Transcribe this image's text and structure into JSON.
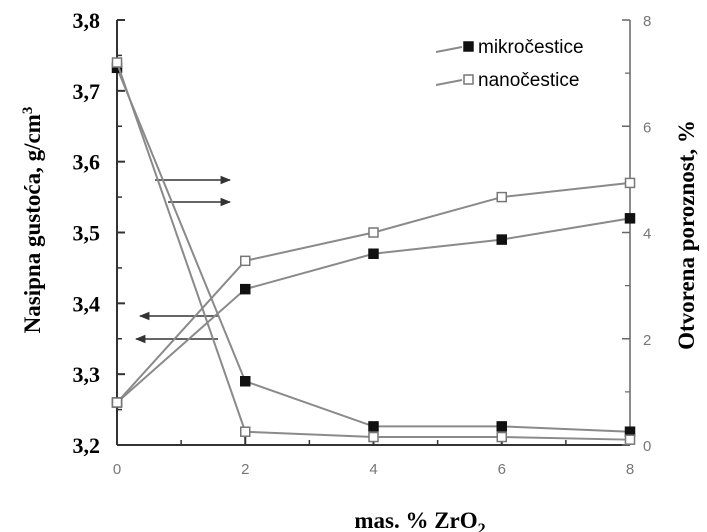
{
  "chart_data": {
    "type": "line",
    "title": "",
    "xlabel": "mas. % ZrO",
    "xlabel_subscript": "2",
    "ylabel_left": "Nasipna gustoća, g/cm",
    "ylabel_left_superscript": "3",
    "ylabel_right": "Otvorena  poroznost, %",
    "xlim": [
      0,
      8
    ],
    "ylim_left": [
      3.2,
      3.8
    ],
    "ylim_right": [
      0,
      8
    ],
    "x_ticks": [
      "0",
      "2",
      "4",
      "6",
      "8"
    ],
    "y_left_ticks": [
      "3,2",
      "3,3",
      "3,4",
      "3,5",
      "3,6",
      "3,7",
      "3,8"
    ],
    "y_right_ticks": [
      "0",
      "2",
      "4",
      "6",
      "8"
    ],
    "x": [
      0,
      2,
      4,
      6,
      8
    ],
    "series": [
      {
        "name": "mikročestice",
        "axis": "left",
        "marker": "filled-square",
        "values": [
          3.26,
          3.42,
          3.47,
          3.49,
          3.52
        ]
      },
      {
        "name": "nanočestice",
        "axis": "left",
        "marker": "open-square",
        "values": [
          3.26,
          3.46,
          3.5,
          3.55,
          3.57
        ]
      },
      {
        "name": "mikročestice",
        "axis": "right",
        "marker": "filled-square",
        "values": [
          7.1,
          1.2,
          0.35,
          0.35,
          0.25
        ]
      },
      {
        "name": "nanočestice",
        "axis": "right",
        "marker": "open-square",
        "values": [
          7.2,
          0.25,
          0.15,
          0.15,
          0.1
        ]
      }
    ],
    "legend": {
      "position": "top-right",
      "entries": [
        "mikročestice",
        "nanočestice"
      ]
    },
    "line_color": "#8a8a8a",
    "grid": false
  }
}
